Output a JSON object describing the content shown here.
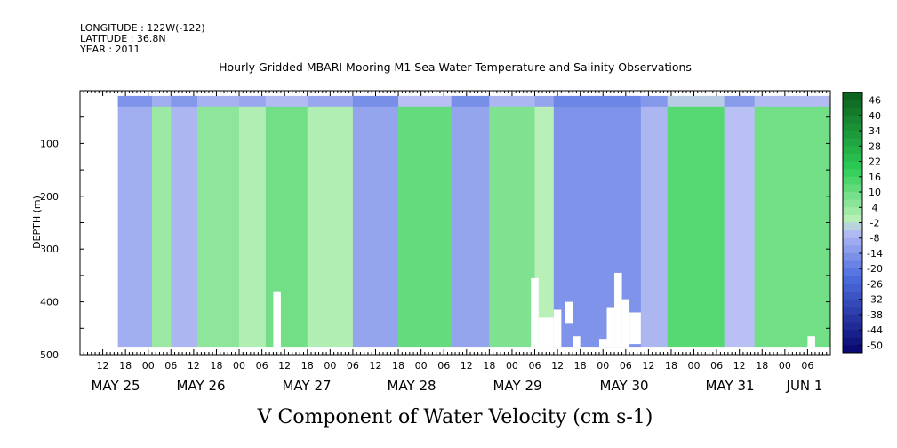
{
  "header": {
    "longitude": "LONGITUDE : 122W(-122)",
    "latitude": "LATITUDE : 36.8N",
    "year": "YEAR : 2011",
    "title": "Hourly Gridded MBARI Mooring M1 Sea Water Temperature and Salinity Observations"
  },
  "chart_data": {
    "type": "heatmap",
    "title": "Hourly Gridded MBARI Mooring M1 Sea Water Temperature and Salinity Observations",
    "xlabel": "V Component of Water Velocity (cm s-1)",
    "ylabel": "DEPTH (m)",
    "x_hour_ticks": [
      "12",
      "18",
      "00",
      "06",
      "12",
      "18",
      "00",
      "06",
      "12",
      "18",
      "00",
      "06",
      "12",
      "18",
      "00",
      "06",
      "12",
      "18",
      "00",
      "06",
      "12",
      "18",
      "00",
      "06",
      "12",
      "18",
      "00",
      "06",
      "12",
      "18",
      "00",
      "06"
    ],
    "x_date_labels": [
      "MAY 25",
      "MAY 26",
      "MAY 27",
      "MAY 28",
      "MAY 29",
      "MAY 30",
      "MAY 31",
      "JUN  1"
    ],
    "x_range_hours": [
      6,
      204
    ],
    "y_ticks": [
      100,
      200,
      300,
      400,
      500
    ],
    "y_minor_step": 50,
    "ylim": [
      0,
      500
    ],
    "data_depth_range": [
      10,
      485
    ],
    "data_start_hour": 16,
    "colorbar": {
      "labels": [
        "46",
        "40",
        "34",
        "28",
        "22",
        "16",
        "10",
        "4",
        "-2",
        "-8",
        "-14",
        "-20",
        "-26",
        "-32",
        "-38",
        "-44",
        "-50"
      ],
      "min": -50,
      "max": 52,
      "step": 3
    },
    "colors": {
      "strong_negative": "#06066e",
      "negative": "#4f6fe0",
      "weak_negative": "#b8c0f4",
      "weak_positive": "#b8f0b8",
      "positive": "#2ccd55",
      "strong_positive": "#0b5e1e",
      "missing": "#ffffff"
    },
    "velocity_bands": [
      {
        "start_hour": 16,
        "end_hour": 25,
        "value": -6
      },
      {
        "start_hour": 25,
        "end_hour": 30,
        "value": 6
      },
      {
        "start_hour": 30,
        "end_hour": 37,
        "value": -4
      },
      {
        "start_hour": 37,
        "end_hour": 48,
        "value": 8
      },
      {
        "start_hour": 48,
        "end_hour": 55,
        "value": 3
      },
      {
        "start_hour": 55,
        "end_hour": 66,
        "value": 12
      },
      {
        "start_hour": 66,
        "end_hour": 78,
        "value": 3
      },
      {
        "start_hour": 78,
        "end_hour": 90,
        "value": -8
      },
      {
        "start_hour": 90,
        "end_hour": 104,
        "value": 14
      },
      {
        "start_hour": 104,
        "end_hour": 114,
        "value": -8
      },
      {
        "start_hour": 114,
        "end_hour": 126,
        "value": 10
      },
      {
        "start_hour": 126,
        "end_hour": 131,
        "value": 2
      },
      {
        "start_hour": 131,
        "end_hour": 154,
        "value": -12
      },
      {
        "start_hour": 154,
        "end_hour": 161,
        "value": -4
      },
      {
        "start_hour": 161,
        "end_hour": 176,
        "value": 16
      },
      {
        "start_hour": 176,
        "end_hour": 184,
        "value": -2
      },
      {
        "start_hour": 184,
        "end_hour": 204,
        "value": 12
      }
    ],
    "surface_layer": {
      "depth_max": 30,
      "value": -18
    },
    "missing_regions": [
      {
        "start_hour": 57,
        "end_hour": 59,
        "depth_top": 380,
        "depth_bottom": 485
      },
      {
        "start_hour": 125,
        "end_hour": 127,
        "depth_top": 355,
        "depth_bottom": 485
      },
      {
        "start_hour": 127,
        "end_hour": 131,
        "depth_top": 430,
        "depth_bottom": 485
      },
      {
        "start_hour": 131,
        "end_hour": 133,
        "depth_top": 415,
        "depth_bottom": 485
      },
      {
        "start_hour": 134,
        "end_hour": 136,
        "depth_top": 400,
        "depth_bottom": 440
      },
      {
        "start_hour": 136,
        "end_hour": 138,
        "depth_top": 465,
        "depth_bottom": 485
      },
      {
        "start_hour": 143,
        "end_hour": 145,
        "depth_top": 470,
        "depth_bottom": 485
      },
      {
        "start_hour": 145,
        "end_hour": 147,
        "depth_top": 410,
        "depth_bottom": 485
      },
      {
        "start_hour": 147,
        "end_hour": 149,
        "depth_top": 345,
        "depth_bottom": 485
      },
      {
        "start_hour": 149,
        "end_hour": 151,
        "depth_top": 395,
        "depth_bottom": 485
      },
      {
        "start_hour": 151,
        "end_hour": 154,
        "depth_top": 420,
        "depth_bottom": 480
      },
      {
        "start_hour": 198,
        "end_hour": 200,
        "depth_top": 465,
        "depth_bottom": 485
      }
    ]
  }
}
